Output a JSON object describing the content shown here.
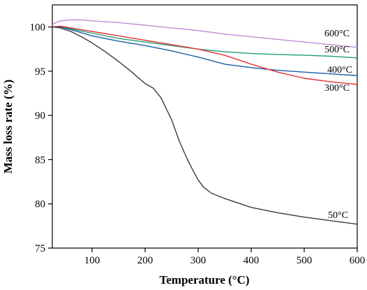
{
  "chart_data": {
    "type": "line",
    "title": "",
    "xlabel": "Temperature (°C)",
    "ylabel": "Mass loss rate (%)",
    "xlim": [
      25,
      600
    ],
    "ylim": [
      75,
      102.5
    ],
    "xticks": [
      100,
      200,
      300,
      400,
      500,
      600
    ],
    "yticks": [
      75,
      80,
      85,
      90,
      95,
      100
    ],
    "grid": false,
    "legend": "labels at right end of each line",
    "series": [
      {
        "name": "600°C",
        "color": "#c18ad8",
        "x": [
          25,
          40,
          60,
          80,
          100,
          150,
          200,
          250,
          300,
          350,
          400,
          450,
          500,
          550,
          600
        ],
        "y": [
          100.3,
          100.7,
          100.8,
          100.8,
          100.7,
          100.5,
          100.2,
          99.9,
          99.6,
          99.2,
          98.9,
          98.6,
          98.3,
          98.0,
          97.7
        ]
      },
      {
        "name": "500°C",
        "color": "#1f9e78",
        "x": [
          25,
          40,
          60,
          100,
          150,
          200,
          250,
          300,
          350,
          400,
          450,
          500,
          550,
          600
        ],
        "y": [
          100.0,
          100.0,
          99.8,
          99.3,
          98.7,
          98.3,
          97.9,
          97.5,
          97.2,
          97.0,
          96.9,
          96.8,
          96.7,
          96.5
        ]
      },
      {
        "name": "400°C",
        "color": "#1a5ea8",
        "x": [
          25,
          40,
          60,
          100,
          150,
          200,
          250,
          300,
          350,
          400,
          450,
          500,
          550,
          600
        ],
        "y": [
          100.0,
          100.0,
          99.7,
          99.0,
          98.4,
          97.9,
          97.3,
          96.6,
          95.8,
          95.4,
          95.1,
          94.9,
          94.7,
          94.5
        ]
      },
      {
        "name": "300°C",
        "color": "#e2322f",
        "x": [
          25,
          40,
          60,
          100,
          150,
          200,
          250,
          300,
          350,
          400,
          450,
          500,
          550,
          600
        ],
        "y": [
          100.0,
          100.1,
          99.9,
          99.5,
          99.0,
          98.5,
          98.0,
          97.5,
          96.8,
          95.8,
          94.9,
          94.2,
          93.8,
          93.5
        ]
      },
      {
        "name": "50°C",
        "color": "#3a3a3a",
        "x": [
          25,
          40,
          60,
          80,
          100,
          125,
          150,
          175,
          200,
          215,
          230,
          250,
          265,
          280,
          290,
          300,
          310,
          325,
          350,
          400,
          450,
          500,
          550,
          600
        ],
        "y": [
          100.0,
          99.9,
          99.5,
          98.9,
          98.2,
          97.2,
          96.1,
          94.9,
          93.6,
          93.1,
          92.0,
          89.5,
          87.0,
          85.0,
          83.8,
          82.7,
          81.9,
          81.2,
          80.6,
          79.6,
          79.0,
          78.5,
          78.1,
          77.7
        ]
      }
    ]
  }
}
